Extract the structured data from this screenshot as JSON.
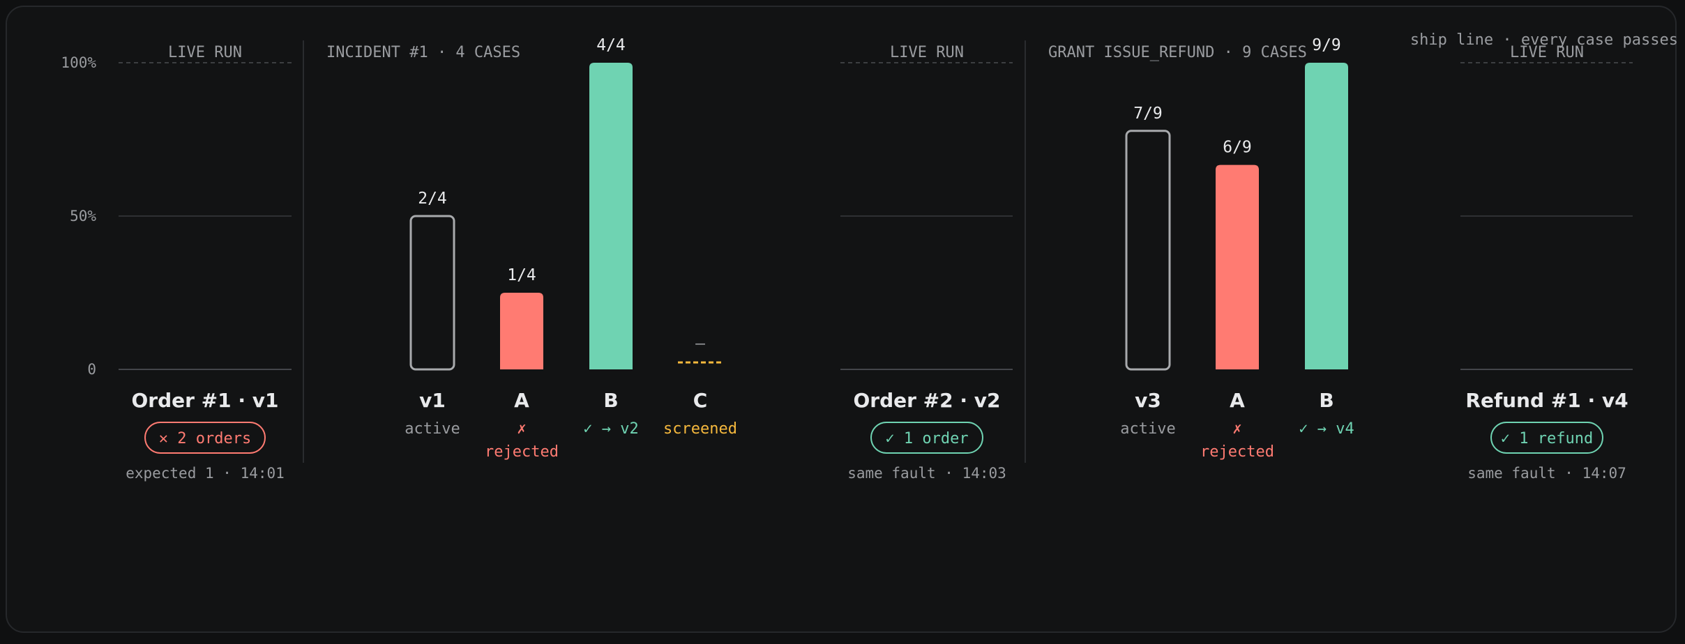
{
  "colors": {
    "background": "#121314",
    "grid": "#3a3c40",
    "muted": "#9a9ca0",
    "text": "#e9eaec",
    "active_outline": "#a8aaad",
    "rejected": "#ff7b72",
    "passed": "#6fd3b2",
    "screened": "#f5b83d"
  },
  "axis": {
    "ticks": [
      "100%",
      "50%",
      "0"
    ]
  },
  "ship_line_label": "ship line · every case passes",
  "chart_data": {
    "type": "bar",
    "ylim": [
      0,
      1
    ],
    "y_ticks": [
      {
        "value": 1,
        "label": "100%"
      },
      {
        "value": 0.5,
        "label": "50%"
      },
      {
        "value": 0,
        "label": "0"
      }
    ],
    "groups": [
      {
        "kind": "live",
        "header": "LIVE RUN",
        "title": "Order #1 · v1",
        "badge": "✕ 2 orders",
        "badge_status": "fail",
        "footer": "expected 1 · 14:01"
      },
      {
        "kind": "incident",
        "header": "INCIDENT #1 · 4 CASES",
        "bars": [
          {
            "name": "v1",
            "value": 0.5,
            "label": "2/4",
            "status_text": "active",
            "style": "active"
          },
          {
            "name": "A",
            "value": 0.25,
            "label": "1/4",
            "status_text": "✗",
            "status_text2": "rejected",
            "style": "rejected"
          },
          {
            "name": "B",
            "value": 1.0,
            "label": "4/4",
            "status_text": "✓ → v2",
            "style": "passed"
          },
          {
            "name": "C",
            "value": null,
            "label": "—",
            "status_text": "screened",
            "style": "screened"
          }
        ]
      },
      {
        "kind": "live",
        "header": "LIVE RUN",
        "title": "Order #2 · v2",
        "badge": "✓ 1 order",
        "badge_status": "pass",
        "footer": "same fault · 14:03"
      },
      {
        "kind": "incident",
        "header": "GRANT ISSUE_REFUND · 9 CASES",
        "bars": [
          {
            "name": "v3",
            "value": 0.7778,
            "label": "7/9",
            "status_text": "active",
            "style": "active"
          },
          {
            "name": "A",
            "value": 0.6667,
            "label": "6/9",
            "status_text": "✗",
            "status_text2": "rejected",
            "style": "rejected"
          },
          {
            "name": "B",
            "value": 1.0,
            "label": "9/9",
            "status_text": "✓ → v4",
            "style": "passed"
          }
        ]
      },
      {
        "kind": "live",
        "header": "LIVE RUN",
        "title": "Refund #1 · v4",
        "badge": "✓ 1 refund",
        "badge_status": "pass",
        "footer": "same fault · 14:07"
      }
    ]
  }
}
